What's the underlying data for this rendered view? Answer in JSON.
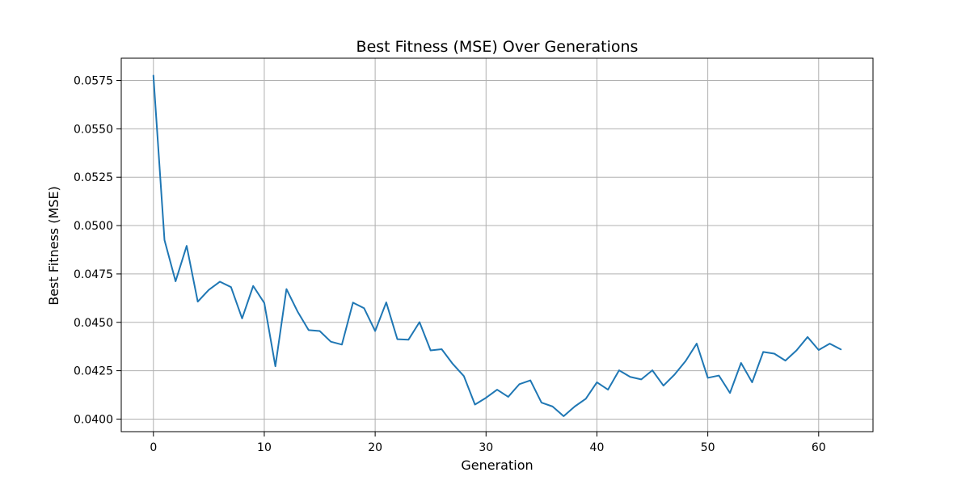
{
  "chart_data": {
    "type": "line",
    "title": "Best Fitness (MSE) Over Generations",
    "xlabel": "Generation",
    "ylabel": "Best Fitness (MSE)",
    "xlim": [
      -2.9,
      64.9
    ],
    "ylim": [
      0.03935,
      0.05865
    ],
    "grid": true,
    "xticks": [
      0,
      10,
      20,
      30,
      40,
      50,
      60
    ],
    "xtick_labels": [
      "0",
      "10",
      "20",
      "30",
      "40",
      "50",
      "60"
    ],
    "yticks": [
      0.04,
      0.0425,
      0.045,
      0.0475,
      0.05,
      0.0525,
      0.055,
      0.0575
    ],
    "ytick_labels": [
      "0.0400",
      "0.0425",
      "0.0450",
      "0.0475",
      "0.0500",
      "0.0525",
      "0.0550",
      "0.0575"
    ],
    "series": [
      {
        "color": "#1f77b4",
        "x": [
          0,
          1,
          2,
          3,
          4,
          5,
          6,
          7,
          8,
          9,
          10,
          11,
          12,
          13,
          14,
          15,
          16,
          17,
          18,
          19,
          20,
          21,
          22,
          23,
          24,
          25,
          26,
          27,
          28,
          29,
          30,
          31,
          32,
          33,
          34,
          35,
          36,
          37,
          38,
          39,
          40,
          41,
          42,
          43,
          44,
          45,
          46,
          47,
          48,
          49,
          50,
          51,
          52,
          53,
          54,
          55,
          56,
          57,
          58,
          59,
          60,
          61,
          62
        ],
        "values": [
          0.05775,
          0.04925,
          0.04712,
          0.04895,
          0.04607,
          0.04668,
          0.0471,
          0.04682,
          0.0452,
          0.04688,
          0.046,
          0.04273,
          0.04672,
          0.04556,
          0.0446,
          0.04455,
          0.044,
          0.04385,
          0.04602,
          0.04573,
          0.04455,
          0.04603,
          0.04413,
          0.0441,
          0.04501,
          0.04355,
          0.04361,
          0.04285,
          0.04222,
          0.04075,
          0.0411,
          0.04152,
          0.04115,
          0.0418,
          0.042,
          0.04085,
          0.04065,
          0.04015,
          0.04065,
          0.04105,
          0.0419,
          0.04152,
          0.04252,
          0.04218,
          0.04205,
          0.04252,
          0.04173,
          0.0423,
          0.043,
          0.0439,
          0.04213,
          0.04225,
          0.04135,
          0.0429,
          0.0419,
          0.04347,
          0.04338,
          0.04302,
          0.04355,
          0.04424,
          0.04357,
          0.0439,
          0.0436
        ]
      }
    ]
  }
}
